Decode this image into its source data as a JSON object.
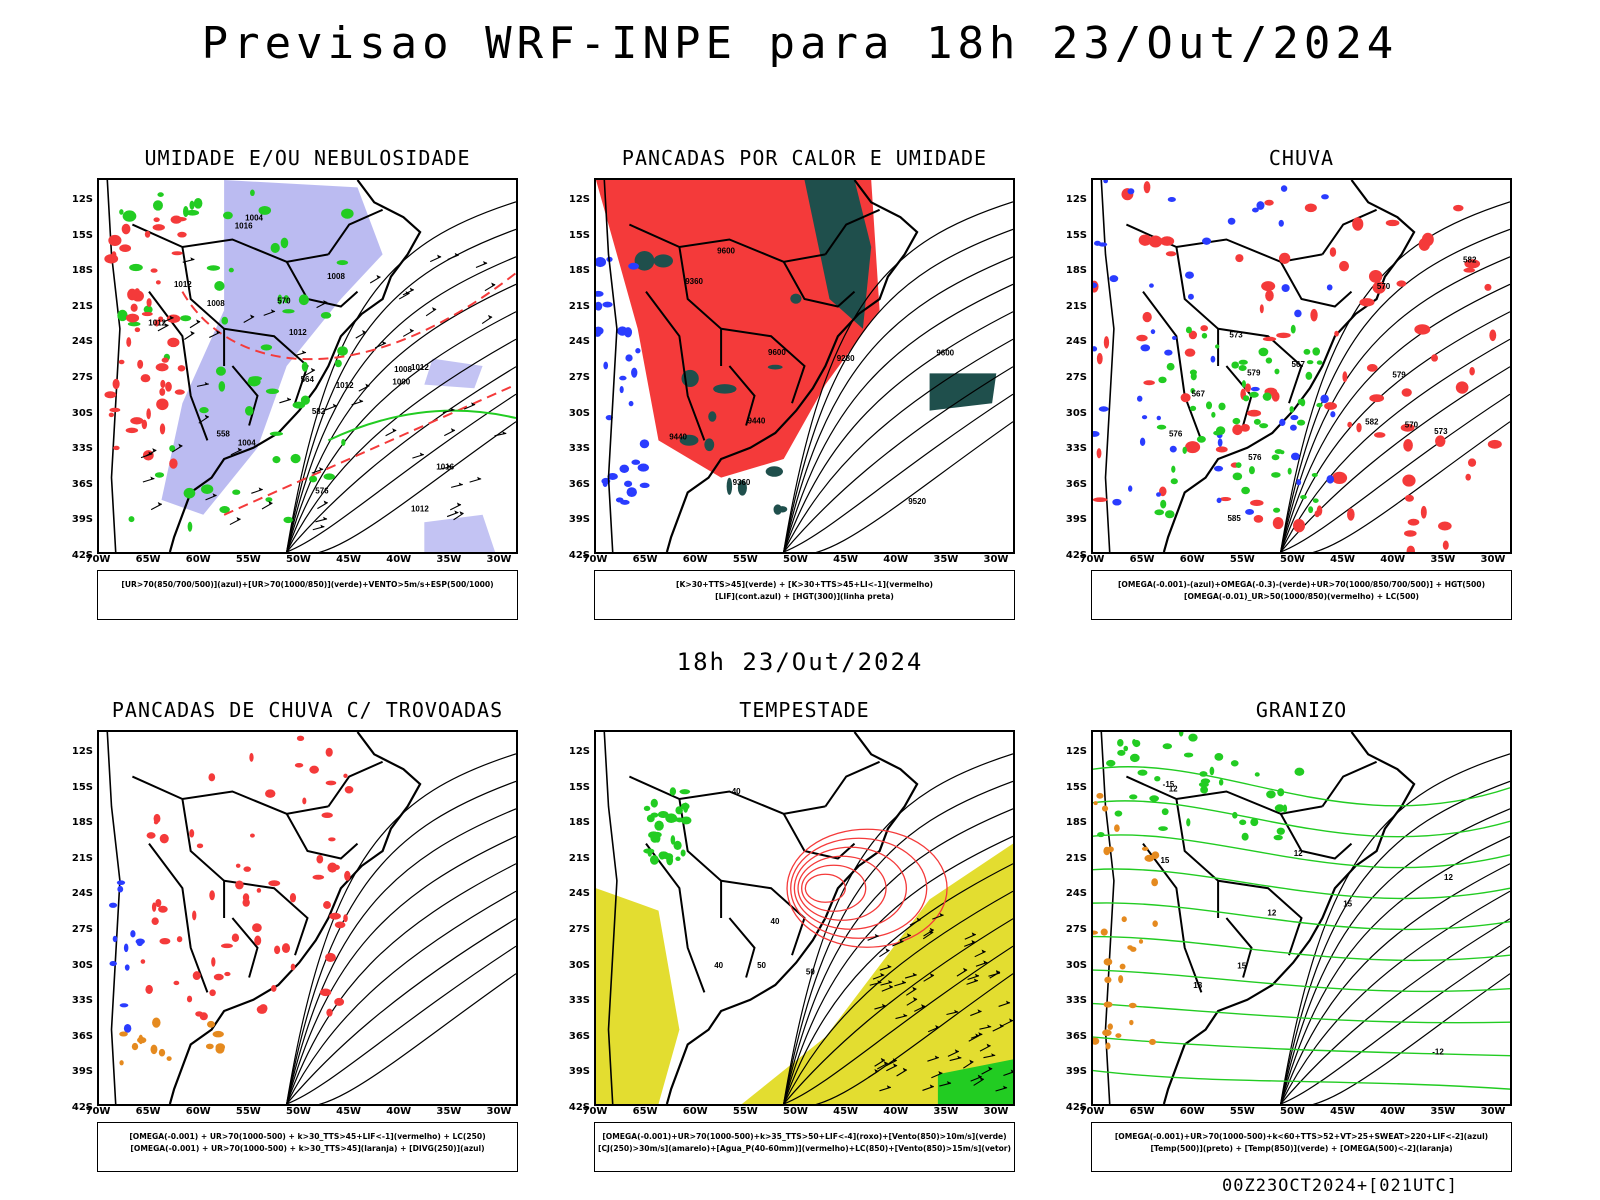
{
  "title": "Previsao WRF-INPE  para 18h 23/Out/2024",
  "mid_time": "18h 23/Out/2024",
  "footer": "00Z23OCT2024+[021UTC]",
  "lat_ticks": [
    "12S",
    "15S",
    "18S",
    "21S",
    "24S",
    "27S",
    "30S",
    "33S",
    "36S",
    "39S",
    "42S"
  ],
  "lon_ticks": [
    "70W",
    "65W",
    "60W",
    "55W",
    "50W",
    "45W",
    "40W",
    "35W",
    "30W"
  ],
  "colors": {
    "blue": "#2a3cff",
    "green": "#22cc22",
    "red": "#f43a3a",
    "lavender": "#b4b4f0",
    "darkgreen": "#1f4f4c",
    "yellow": "#e3dd30",
    "orange": "#e58a1f",
    "black": "#000000"
  },
  "panels": [
    {
      "title": "UMIDADE E/OU NEBULOSIDADE",
      "legend": [
        "[UR>70(850/700/500)](azul)+[UR>70(1000/850)](verde)+VENTO>5m/s+ESP(500/1000)"
      ],
      "labels": [
        "1008",
        "1012",
        "1012",
        "1016",
        "1004",
        "1008",
        "1012",
        "1012",
        "1016",
        "1000",
        "1004",
        "1008",
        "1012",
        "1012",
        "582",
        "576",
        "570",
        "564",
        "558"
      ]
    },
    {
      "title": "PANCADAS POR CALOR E UMIDADE",
      "legend": [
        "[K>30+TTS>45](verde) + [K>30+TTS>45+LI<-1](vermelho)",
        "[LIF](cont.azul) + [HGT(300)](linha preta)"
      ],
      "labels": [
        "9600",
        "9600",
        "9600",
        "9520",
        "9440",
        "9360",
        "9280",
        "9360",
        "9440"
      ]
    },
    {
      "title": "CHUVA",
      "legend": [
        "[OMEGA(-0.001)-(azul)+OMEGA(-0.3)-(verde)+UR>70(1000/850/700/500)] + HGT(500)",
        "[OMEGA(-0.01)_UR>50(1000/850)(vermelho) + LC(500)"
      ],
      "labels": [
        "585",
        "582",
        "579",
        "576",
        "573",
        "570",
        "567",
        "582",
        "579",
        "576",
        "573",
        "570",
        "567"
      ]
    },
    {
      "title": "PANCADAS DE CHUVA C/ TROVOADAS",
      "legend": [
        "[OMEGA(-0.001) + UR>70(1000-500) + k>30_TTS>45+LIF<-1](vermelho) + LC(250)",
        "[OMEGA(-0.001) + UR>70(1000-500) + k>30_TTS>45](laranja) + [DIVG(250)](azul)"
      ],
      "labels": []
    },
    {
      "title": "TEMPESTADE",
      "legend": [
        "[OMEGA(-0.001)+UR>70(1000-500)+k>35_TTS>50+LIF<-4](roxo)+[Vento(850)>10m/s](verde)",
        "[CJ(250)>30m/s](amarelo)+[Agua_P(40-60mm)](vermelho)+LC(850)+[Vento(850)>15m/s](vetor)"
      ],
      "labels": [
        "50",
        "40",
        "40",
        "40",
        "50"
      ]
    },
    {
      "title": "GRANIZO",
      "legend": [
        "[OMEGA(-0.001)+UR>70(1000-500)+k<60+TTS>52+VT>25+SWEAT>220+LIF<-2](azul)",
        "[Temp(500)](preto) + [Temp(850)](verde) + [OMEGA(500)<-2](laranja)"
      ],
      "labels": [
        "12",
        "15",
        "18",
        "12",
        "15",
        "12",
        "-12",
        "-15",
        "12",
        "15"
      ]
    }
  ]
}
